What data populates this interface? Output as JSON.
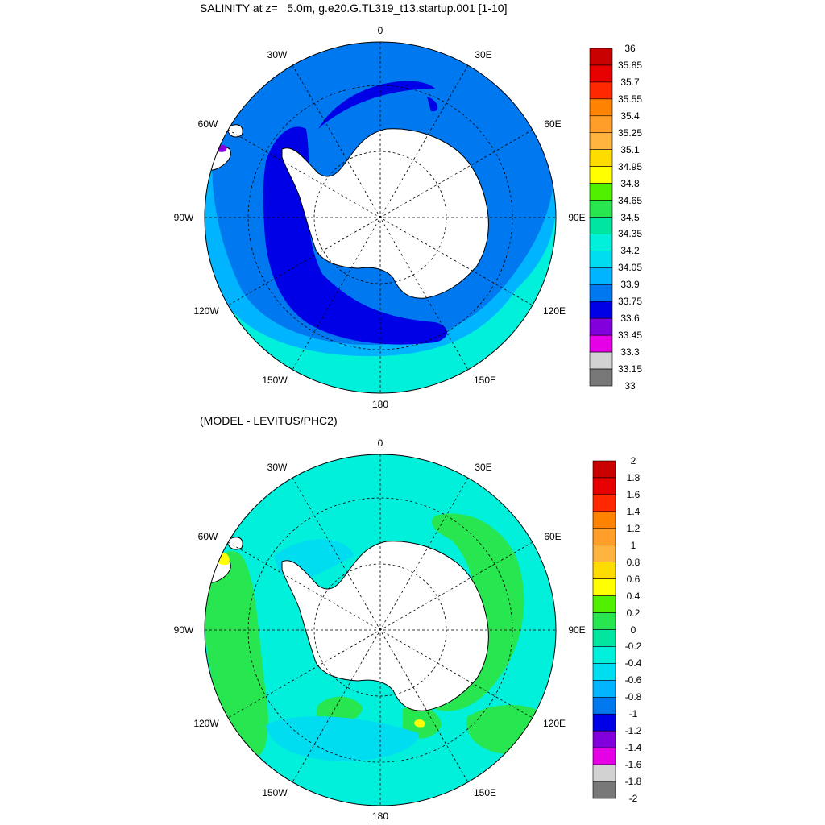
{
  "top_panel": {
    "title": "SALINITY at z=   5.0m, g.e20.G.TL319_t13.startup.001 [1-10]",
    "lon_labels": {
      "n": "0",
      "nw": "30W",
      "ne": "30E",
      "w1": "60W",
      "e1": "60E",
      "w": "90W",
      "e": "90E",
      "sw1": "120W",
      "se1": "120E",
      "sw2": "150W",
      "se2": "150E",
      "s": "180"
    },
    "colorbar": {
      "labels": [
        "36",
        "35.85",
        "35.7",
        "35.55",
        "35.4",
        "35.25",
        "35.1",
        "34.95",
        "34.8",
        "34.65",
        "34.5",
        "34.35",
        "34.2",
        "34.05",
        "33.9",
        "33.75",
        "33.6",
        "33.45",
        "33.3",
        "33.15",
        "33"
      ],
      "colors": [
        "#c80000",
        "#e60000",
        "#ff2800",
        "#ff8200",
        "#ff9e28",
        "#ffb440",
        "#ffdc00",
        "#ffff00",
        "#50f000",
        "#28e650",
        "#00e6a0",
        "#00f0dc",
        "#00dcf0",
        "#00b4ff",
        "#0078f0",
        "#0000e6",
        "#8200dc",
        "#e600e6",
        "#d2d2d2",
        "#787878"
      ]
    }
  },
  "bottom_panel": {
    "title": "(MODEL - LEVITUS/PHC2)",
    "lon_labels": {
      "n": "0",
      "nw": "30W",
      "ne": "30E",
      "w1": "60W",
      "e1": "60E",
      "w": "90W",
      "e": "90E",
      "sw1": "120W",
      "se1": "120E",
      "sw2": "150W",
      "se2": "150E",
      "s": "180"
    },
    "colorbar": {
      "labels": [
        "2",
        "1.8",
        "1.6",
        "1.4",
        "1.2",
        "1",
        "0.8",
        "0.6",
        "0.4",
        "0.2",
        "0",
        "-0.2",
        "-0.4",
        "-0.6",
        "-0.8",
        "-1",
        "-1.2",
        "-1.4",
        "-1.6",
        "-1.8",
        "-2"
      ],
      "colors": [
        "#c80000",
        "#e60000",
        "#ff2800",
        "#ff8200",
        "#ff9e28",
        "#ffb440",
        "#ffdc00",
        "#ffff00",
        "#50f000",
        "#28e650",
        "#00e6a0",
        "#00f0dc",
        "#00dcf0",
        "#00b4ff",
        "#0078f0",
        "#0000e6",
        "#8200dc",
        "#e600e6",
        "#d2d2d2",
        "#787878"
      ]
    }
  },
  "colors": {
    "top_ocean_outer": "#00f0dc",
    "top_ocean_mid": "#00b4ff",
    "top_ocean_acc": "#0078f0",
    "top_ocean_low": "#0000e6",
    "bot_ocean_main": "#00f0dc",
    "bot_ocean_pos": "#28e650",
    "bot_ocean_neg": "#00dcf0",
    "land": "#ffffff"
  }
}
